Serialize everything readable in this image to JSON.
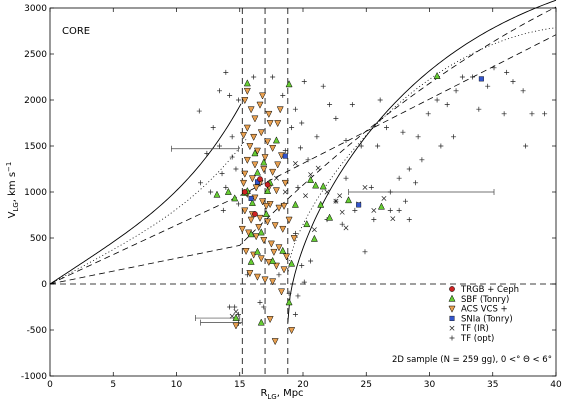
{
  "chart_data": {
    "type": "scatter",
    "panel_label": "CORE",
    "xlabel_main": "R",
    "xlabel_sub": "LG",
    "xlabel_tail": ", Mpc",
    "ylabel_main": "V",
    "ylabel_sub": "LG",
    "ylabel_tail": ", km s",
    "ylabel_sup": "−1",
    "xlim": [
      0,
      40
    ],
    "ylim": [
      -1000,
      3000
    ],
    "xticks": [
      0,
      5,
      10,
      15,
      20,
      25,
      30,
      35,
      40
    ],
    "yticks": [
      -1000,
      -500,
      0,
      500,
      1000,
      1500,
      2000,
      2500,
      3000
    ],
    "grid": false,
    "legend_position": "bottom-right",
    "annotation": "2D sample (N = 259 gg),   0 <° Θ < 6°",
    "reference_lines": {
      "vertical_dashed_x": [
        15.2,
        17.0,
        18.8
      ],
      "horizontal_dashed_y": 0
    },
    "colors": {
      "trgb": "#cc2222",
      "sbf": "#66cc33",
      "acs": "#e8a050",
      "snia": "#3355cc",
      "tf": "#222222"
    },
    "series": [
      {
        "name": "TRGB + Ceph",
        "marker": "circle",
        "points": [
          [
            15.4,
            1000
          ],
          [
            16.6,
            1140
          ],
          [
            17.2,
            1080
          ],
          [
            16.2,
            760
          ]
        ]
      },
      {
        "name": "SBF (Tonry)",
        "marker": "triangle-up",
        "points": [
          [
            13.2,
            970
          ],
          [
            14.1,
            1000
          ],
          [
            14.6,
            930
          ],
          [
            15.6,
            1010
          ],
          [
            16.0,
            880
          ],
          [
            16.4,
            1210
          ],
          [
            16.9,
            1320
          ],
          [
            17.4,
            1100
          ],
          [
            15.9,
            540
          ],
          [
            16.4,
            350
          ],
          [
            17.1,
            760
          ],
          [
            17.6,
            250
          ],
          [
            18.4,
            360
          ],
          [
            15.6,
            2180
          ],
          [
            18.9,
            2170
          ],
          [
            16.7,
            560
          ],
          [
            17.2,
            1010
          ],
          [
            19.4,
            860
          ],
          [
            20.6,
            1130
          ],
          [
            21.0,
            1070
          ],
          [
            21.4,
            860
          ],
          [
            22.1,
            720
          ],
          [
            20.3,
            650
          ],
          [
            20.9,
            490
          ],
          [
            21.6,
            1060
          ],
          [
            23.6,
            910
          ],
          [
            19.1,
            220
          ],
          [
            26.2,
            840
          ],
          [
            30.6,
            2260
          ],
          [
            17.9,
            1560
          ],
          [
            16.7,
            -420
          ],
          [
            14.7,
            -370
          ],
          [
            18.9,
            -200
          ],
          [
            15.9,
            240
          ],
          [
            16.2,
            1420
          ],
          [
            15.4,
            990
          ]
        ]
      },
      {
        "name": "ACS VCS +",
        "marker": "triangle-down",
        "points": [
          [
            15.4,
            2000
          ],
          [
            15.9,
            1900
          ],
          [
            16.2,
            1800
          ],
          [
            15.6,
            1700
          ],
          [
            16.1,
            1600
          ],
          [
            16.7,
            1650
          ],
          [
            17.2,
            1550
          ],
          [
            15.8,
            1500
          ],
          [
            16.4,
            1450
          ],
          [
            17.0,
            1380
          ],
          [
            15.6,
            1350
          ],
          [
            16.2,
            1300
          ],
          [
            16.9,
            1250
          ],
          [
            17.6,
            1220
          ],
          [
            15.4,
            1200
          ],
          [
            16.0,
            1150
          ],
          [
            16.6,
            1100
          ],
          [
            17.3,
            1050
          ],
          [
            17.9,
            1020
          ],
          [
            15.6,
            980
          ],
          [
            16.2,
            940
          ],
          [
            16.8,
            900
          ],
          [
            17.4,
            870
          ],
          [
            18.1,
            830
          ],
          [
            15.4,
            800
          ],
          [
            16.0,
            760
          ],
          [
            16.6,
            720
          ],
          [
            17.2,
            680
          ],
          [
            17.8,
            640
          ],
          [
            18.4,
            600
          ],
          [
            15.7,
            560
          ],
          [
            16.3,
            520
          ],
          [
            16.9,
            480
          ],
          [
            17.5,
            440
          ],
          [
            18.1,
            400
          ],
          [
            15.5,
            360
          ],
          [
            16.1,
            320
          ],
          [
            16.7,
            280
          ],
          [
            17.3,
            240
          ],
          [
            17.9,
            200
          ],
          [
            18.5,
            160
          ],
          [
            15.8,
            120
          ],
          [
            16.4,
            80
          ],
          [
            17.0,
            50
          ],
          [
            17.6,
            30
          ],
          [
            18.3,
            -80
          ],
          [
            16.6,
            1950
          ],
          [
            17.3,
            1850
          ],
          [
            18.0,
            1750
          ],
          [
            15.3,
            1620
          ],
          [
            17.6,
            1480
          ],
          [
            18.3,
            1400
          ],
          [
            15.3,
            1100
          ],
          [
            18.6,
            1100
          ],
          [
            18.5,
            850
          ],
          [
            18.9,
            700
          ],
          [
            19.3,
            500
          ],
          [
            18.7,
            300
          ],
          [
            14.7,
            -450
          ],
          [
            17.4,
            -380
          ],
          [
            19.1,
            -500
          ],
          [
            17.8,
            -620
          ],
          [
            15.6,
            2100
          ],
          [
            16.8,
            2050
          ],
          [
            17.4,
            1750
          ],
          [
            17.1,
            850
          ],
          [
            16.5,
            620
          ],
          [
            15.2,
            600
          ],
          [
            18.0,
            1300
          ],
          [
            16.3,
            1050
          ],
          [
            15.9,
            700
          ],
          [
            17.7,
            350
          ],
          [
            18.2,
            1900
          ]
        ]
      },
      {
        "name": "SNIa (Tonry)",
        "marker": "square",
        "points": [
          [
            16.4,
            1110
          ],
          [
            18.6,
            1390
          ],
          [
            24.4,
            860
          ],
          [
            15.9,
            930
          ],
          [
            34.1,
            2230
          ]
        ]
      },
      {
        "name": "TF (IR)",
        "marker": "x",
        "points": [
          [
            20.6,
            1190
          ],
          [
            21.9,
            1000
          ],
          [
            22.6,
            900
          ],
          [
            23.1,
            780
          ],
          [
            24.9,
            1050
          ],
          [
            26.4,
            930
          ],
          [
            27.1,
            710
          ],
          [
            17.9,
            1150
          ],
          [
            18.6,
            1000
          ],
          [
            19.4,
            1310
          ],
          [
            21.2,
            1260
          ],
          [
            22.9,
            960
          ],
          [
            24.4,
            870
          ],
          [
            25.6,
            800
          ],
          [
            20.9,
            590
          ],
          [
            20.2,
            960
          ],
          [
            23.4,
            610
          ],
          [
            14.7,
            -300
          ],
          [
            14.4,
            -350
          ]
        ]
      },
      {
        "name": "TF (opt)",
        "marker": "plus",
        "points": [
          [
            13.9,
            2300
          ],
          [
            11.8,
            1880
          ],
          [
            12.9,
            1700
          ],
          [
            12.4,
            1420
          ],
          [
            13.4,
            1500
          ],
          [
            14.4,
            1380
          ],
          [
            13.6,
            1200
          ],
          [
            12.7,
            1000
          ],
          [
            11.9,
            1100
          ],
          [
            14.7,
            1250
          ],
          [
            13.9,
            1050
          ],
          [
            14.9,
            870
          ],
          [
            13.7,
            800
          ],
          [
            14.4,
            1600
          ],
          [
            14.9,
            2000
          ],
          [
            13.4,
            2100
          ],
          [
            14.2,
            2050
          ],
          [
            16.1,
            2250
          ],
          [
            18.4,
            2050
          ],
          [
            19.1,
            1700
          ],
          [
            19.8,
            1480
          ],
          [
            19.6,
            1050
          ],
          [
            20.4,
            1350
          ],
          [
            21.1,
            1600
          ],
          [
            19.9,
            1750
          ],
          [
            22.6,
            1800
          ],
          [
            23.4,
            1560
          ],
          [
            24.6,
            1500
          ],
          [
            25.9,
            1500
          ],
          [
            26.6,
            1700
          ],
          [
            27.9,
            1650
          ],
          [
            29.1,
            1600
          ],
          [
            29.9,
            1850
          ],
          [
            30.6,
            2000
          ],
          [
            31.4,
            1950
          ],
          [
            32.1,
            2100
          ],
          [
            33.4,
            2250
          ],
          [
            34.6,
            2150
          ],
          [
            35.1,
            2350
          ],
          [
            36.1,
            2300
          ],
          [
            37.4,
            2100
          ],
          [
            38.1,
            1850
          ],
          [
            35.9,
            1850
          ],
          [
            33.9,
            1900
          ],
          [
            32.6,
            2250
          ],
          [
            31.9,
            1600
          ],
          [
            30.9,
            1500
          ],
          [
            29.4,
            1350
          ],
          [
            28.4,
            1250
          ],
          [
            27.6,
            1150
          ],
          [
            28.1,
            900
          ],
          [
            26.9,
            800
          ],
          [
            25.6,
            700
          ],
          [
            24.1,
            800
          ],
          [
            22.6,
            900
          ],
          [
            21.9,
            700
          ],
          [
            23.1,
            650
          ],
          [
            24.9,
            350
          ],
          [
            27.6,
            800
          ],
          [
            28.4,
            700
          ],
          [
            17.6,
            2250
          ],
          [
            20.1,
            2200
          ],
          [
            21.6,
            2150
          ],
          [
            23.9,
            1950
          ],
          [
            26.1,
            2000
          ],
          [
            36.6,
            2200
          ],
          [
            37.6,
            1500
          ],
          [
            39.1,
            1850
          ],
          [
            19.4,
            550
          ],
          [
            20.6,
            250
          ],
          [
            19.9,
            200
          ],
          [
            20.1,
            20
          ],
          [
            18.9,
            -100
          ],
          [
            19.6,
            -130
          ],
          [
            19.4,
            -330
          ],
          [
            14.9,
            -330
          ],
          [
            14.9,
            -430
          ],
          [
            16.6,
            -200
          ],
          [
            16.9,
            -250
          ],
          [
            15.6,
            100
          ],
          [
            14.6,
            -250
          ],
          [
            14.2,
            -250
          ],
          [
            18.1,
            100
          ],
          [
            18.6,
            1450
          ],
          [
            19.4,
            1900
          ],
          [
            22.1,
            1950
          ],
          [
            25.4,
            1050
          ],
          [
            26.9,
            1000
          ],
          [
            28.9,
            1100
          ],
          [
            23.4,
            1150
          ]
        ]
      }
    ],
    "error_bars": [
      {
        "y": 1470,
        "x_low": 9.6,
        "x_high": 14.9
      },
      {
        "y": 1000,
        "x_low": 23.6,
        "x_high": 35.1
      },
      {
        "y": -370,
        "x_low": 11.5,
        "x_high": 15.0
      },
      {
        "y": -420,
        "x_low": 11.9,
        "x_high": 15.2
      }
    ],
    "model_curves": [
      {
        "style": "solid",
        "role": "upper"
      },
      {
        "style": "solid",
        "role": "lower"
      },
      {
        "style": "dashed",
        "role": "upper"
      },
      {
        "style": "dashed",
        "role": "lower"
      },
      {
        "style": "dotted",
        "role": "upper"
      },
      {
        "style": "dotted",
        "role": "lower"
      }
    ]
  }
}
